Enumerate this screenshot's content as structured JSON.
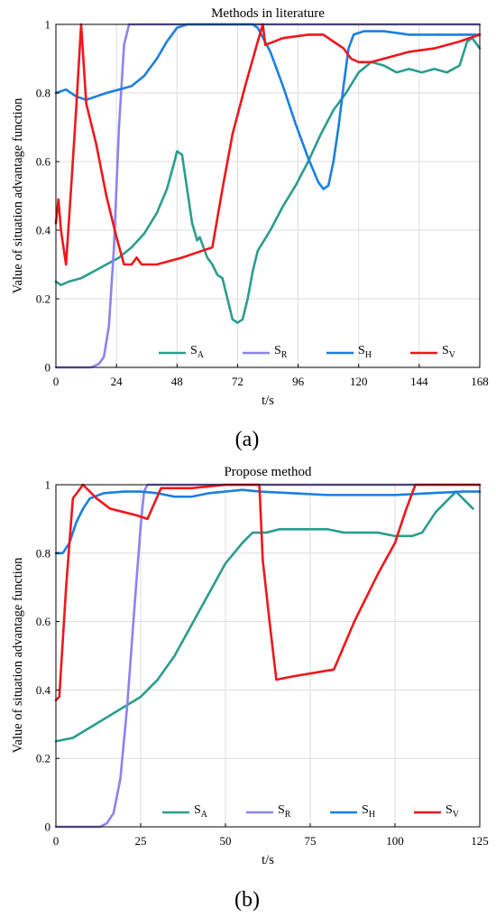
{
  "panel_labels": [
    "(a)",
    "(b)"
  ],
  "chart_data": [
    {
      "type": "line",
      "title": "Methods in literature",
      "xlabel": "t/s",
      "ylabel": "Value of situation advantage function",
      "xlim": [
        0,
        168
      ],
      "ylim": [
        0,
        1
      ],
      "xticks": [
        0,
        24,
        48,
        72,
        96,
        120,
        144,
        168
      ],
      "yticks": [
        0,
        0.2,
        0.4,
        0.6,
        0.8,
        1
      ],
      "grid": true,
      "legend": {
        "placement": "bottom-center",
        "orientation": "horizontal"
      },
      "series": [
        {
          "name": "S",
          "sub": "A",
          "color": "#2a9d8f",
          "points": [
            [
              0,
              0.25
            ],
            [
              2,
              0.24
            ],
            [
              5,
              0.25
            ],
            [
              10,
              0.26
            ],
            [
              15,
              0.28
            ],
            [
              20,
              0.3
            ],
            [
              25,
              0.32
            ],
            [
              30,
              0.35
            ],
            [
              35,
              0.39
            ],
            [
              40,
              0.45
            ],
            [
              44,
              0.52
            ],
            [
              47,
              0.6
            ],
            [
              48,
              0.63
            ],
            [
              50,
              0.62
            ],
            [
              52,
              0.52
            ],
            [
              54,
              0.42
            ],
            [
              56,
              0.37
            ],
            [
              57,
              0.38
            ],
            [
              58,
              0.36
            ],
            [
              60,
              0.32
            ],
            [
              62,
              0.3
            ],
            [
              64,
              0.27
            ],
            [
              66,
              0.26
            ],
            [
              68,
              0.2
            ],
            [
              70,
              0.14
            ],
            [
              72,
              0.13
            ],
            [
              74,
              0.14
            ],
            [
              76,
              0.2
            ],
            [
              78,
              0.28
            ],
            [
              80,
              0.34
            ],
            [
              85,
              0.4
            ],
            [
              90,
              0.47
            ],
            [
              95,
              0.53
            ],
            [
              100,
              0.6
            ],
            [
              105,
              0.68
            ],
            [
              110,
              0.75
            ],
            [
              115,
              0.8
            ],
            [
              120,
              0.86
            ],
            [
              125,
              0.89
            ],
            [
              130,
              0.88
            ],
            [
              135,
              0.86
            ],
            [
              140,
              0.87
            ],
            [
              145,
              0.86
            ],
            [
              150,
              0.87
            ],
            [
              155,
              0.86
            ],
            [
              160,
              0.88
            ],
            [
              163,
              0.95
            ],
            [
              165,
              0.96
            ],
            [
              168,
              0.93
            ]
          ]
        },
        {
          "name": "S",
          "sub": "R",
          "color": "#8b83ee",
          "points": [
            [
              0,
              0
            ],
            [
              14,
              0
            ],
            [
              17,
              0.01
            ],
            [
              19,
              0.03
            ],
            [
              21,
              0.12
            ],
            [
              23,
              0.35
            ],
            [
              25,
              0.7
            ],
            [
              27,
              0.94
            ],
            [
              29,
              1.0
            ],
            [
              168,
              1.0
            ]
          ]
        },
        {
          "name": "S",
          "sub": "H",
          "color": "#1a7fe0",
          "points": [
            [
              0,
              0.8
            ],
            [
              4,
              0.81
            ],
            [
              8,
              0.79
            ],
            [
              12,
              0.78
            ],
            [
              16,
              0.79
            ],
            [
              20,
              0.8
            ],
            [
              25,
              0.81
            ],
            [
              30,
              0.82
            ],
            [
              35,
              0.85
            ],
            [
              40,
              0.9
            ],
            [
              44,
              0.95
            ],
            [
              48,
              0.99
            ],
            [
              52,
              1.0
            ],
            [
              60,
              1.0
            ],
            [
              70,
              1.0
            ],
            [
              78,
              1.0
            ],
            [
              80,
              0.99
            ],
            [
              85,
              0.92
            ],
            [
              90,
              0.82
            ],
            [
              95,
              0.71
            ],
            [
              100,
              0.61
            ],
            [
              104,
              0.54
            ],
            [
              106,
              0.52
            ],
            [
              108,
              0.53
            ],
            [
              110,
              0.6
            ],
            [
              112,
              0.7
            ],
            [
              114,
              0.82
            ],
            [
              116,
              0.93
            ],
            [
              118,
              0.97
            ],
            [
              122,
              0.98
            ],
            [
              130,
              0.98
            ],
            [
              140,
              0.97
            ],
            [
              150,
              0.97
            ],
            [
              160,
              0.97
            ],
            [
              168,
              0.97
            ]
          ]
        },
        {
          "name": "S",
          "sub": "V",
          "color": "#f0161c",
          "points": [
            [
              0,
              0.42
            ],
            [
              1,
              0.49
            ],
            [
              2,
              0.4
            ],
            [
              4,
              0.3
            ],
            [
              6,
              0.52
            ],
            [
              8,
              0.75
            ],
            [
              10,
              1.0
            ],
            [
              12,
              0.77
            ],
            [
              16,
              0.65
            ],
            [
              20,
              0.5
            ],
            [
              24,
              0.38
            ],
            [
              27,
              0.3
            ],
            [
              30,
              0.3
            ],
            [
              32,
              0.32
            ],
            [
              34,
              0.3
            ],
            [
              40,
              0.3
            ],
            [
              50,
              0.32
            ],
            [
              58,
              0.34
            ],
            [
              62,
              0.35
            ],
            [
              66,
              0.52
            ],
            [
              70,
              0.68
            ],
            [
              75,
              0.82
            ],
            [
              80,
              0.95
            ],
            [
              82,
              1.0
            ],
            [
              83,
              0.94
            ],
            [
              90,
              0.96
            ],
            [
              100,
              0.97
            ],
            [
              106,
              0.97
            ],
            [
              110,
              0.95
            ],
            [
              114,
              0.93
            ],
            [
              117,
              0.9
            ],
            [
              120,
              0.89
            ],
            [
              125,
              0.89
            ],
            [
              130,
              0.9
            ],
            [
              140,
              0.92
            ],
            [
              150,
              0.93
            ],
            [
              160,
              0.95
            ],
            [
              168,
              0.97
            ]
          ]
        }
      ]
    },
    {
      "type": "line",
      "title": "Propose method",
      "xlabel": "t/s",
      "ylabel": "Value of situation advantage function",
      "xlim": [
        0,
        125
      ],
      "ylim": [
        0,
        1
      ],
      "xticks": [
        0,
        25,
        50,
        75,
        100,
        125
      ],
      "yticks": [
        0,
        0.2,
        0.4,
        0.6,
        0.8,
        1
      ],
      "grid": true,
      "legend": {
        "placement": "bottom-center",
        "orientation": "horizontal"
      },
      "series": [
        {
          "name": "S",
          "sub": "A",
          "color": "#2a9d8f",
          "points": [
            [
              0,
              0.25
            ],
            [
              5,
              0.26
            ],
            [
              10,
              0.29
            ],
            [
              15,
              0.32
            ],
            [
              20,
              0.35
            ],
            [
              25,
              0.38
            ],
            [
              30,
              0.43
            ],
            [
              35,
              0.5
            ],
            [
              40,
              0.59
            ],
            [
              45,
              0.68
            ],
            [
              50,
              0.77
            ],
            [
              55,
              0.83
            ],
            [
              58,
              0.86
            ],
            [
              62,
              0.86
            ],
            [
              66,
              0.87
            ],
            [
              70,
              0.87
            ],
            [
              75,
              0.87
            ],
            [
              80,
              0.87
            ],
            [
              85,
              0.86
            ],
            [
              90,
              0.86
            ],
            [
              95,
              0.86
            ],
            [
              100,
              0.85
            ],
            [
              105,
              0.85
            ],
            [
              108,
              0.86
            ],
            [
              112,
              0.92
            ],
            [
              115,
              0.95
            ],
            [
              118,
              0.98
            ],
            [
              120,
              0.96
            ],
            [
              123,
              0.93
            ]
          ]
        },
        {
          "name": "S",
          "sub": "R",
          "color": "#8b83ee",
          "points": [
            [
              0,
              0
            ],
            [
              13,
              0
            ],
            [
              15,
              0.01
            ],
            [
              17,
              0.04
            ],
            [
              19,
              0.14
            ],
            [
              21,
              0.35
            ],
            [
              23,
              0.62
            ],
            [
              25,
              0.88
            ],
            [
              26,
              0.98
            ],
            [
              27,
              1.0
            ],
            [
              125,
              1.0
            ]
          ]
        },
        {
          "name": "S",
          "sub": "H",
          "color": "#1a7fe0",
          "points": [
            [
              0,
              0.8
            ],
            [
              2,
              0.8
            ],
            [
              4,
              0.83
            ],
            [
              6,
              0.89
            ],
            [
              8,
              0.93
            ],
            [
              10,
              0.96
            ],
            [
              14,
              0.975
            ],
            [
              20,
              0.98
            ],
            [
              25,
              0.98
            ],
            [
              30,
              0.975
            ],
            [
              35,
              0.965
            ],
            [
              40,
              0.965
            ],
            [
              45,
              0.975
            ],
            [
              50,
              0.98
            ],
            [
              55,
              0.985
            ],
            [
              60,
              0.98
            ],
            [
              70,
              0.975
            ],
            [
              80,
              0.97
            ],
            [
              90,
              0.97
            ],
            [
              100,
              0.97
            ],
            [
              110,
              0.975
            ],
            [
              120,
              0.98
            ],
            [
              125,
              0.98
            ]
          ]
        },
        {
          "name": "S",
          "sub": "V",
          "color": "#f0161c",
          "points": [
            [
              0,
              0.37
            ],
            [
              1,
              0.38
            ],
            [
              3,
              0.7
            ],
            [
              5,
              0.96
            ],
            [
              8,
              1.0
            ],
            [
              12,
              0.96
            ],
            [
              16,
              0.93
            ],
            [
              20,
              0.92
            ],
            [
              24,
              0.91
            ],
            [
              27,
              0.9
            ],
            [
              31,
              0.99
            ],
            [
              40,
              0.99
            ],
            [
              50,
              1.0
            ],
            [
              60,
              1.0
            ],
            [
              61,
              0.78
            ],
            [
              63,
              0.6
            ],
            [
              65,
              0.43
            ],
            [
              70,
              0.44
            ],
            [
              82,
              0.46
            ],
            [
              88,
              0.6
            ],
            [
              95,
              0.74
            ],
            [
              100,
              0.83
            ],
            [
              103,
              0.92
            ],
            [
              106,
              1.0
            ],
            [
              125,
              1.0
            ]
          ]
        }
      ]
    }
  ]
}
